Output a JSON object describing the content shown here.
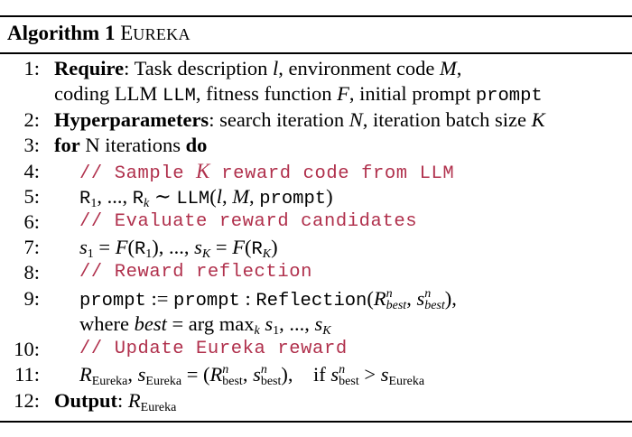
{
  "header": {
    "label": "Algorithm 1",
    "name_first": "E",
    "name_rest": "UREKA"
  },
  "lines": {
    "l1": {
      "num": "1:",
      "kw": "Require",
      "t1": ": Task description ",
      "v1": "l",
      "t2": ", environment code ",
      "v2": "M",
      "t3": ",",
      "t4": "coding LLM ",
      "m1": "LLM",
      "t5": ", fitness function ",
      "v3": "F",
      "t6": ", initial prompt ",
      "m2": "prompt"
    },
    "l2": {
      "num": "2:",
      "kw": "Hyperparameters",
      "t1": ": search iteration ",
      "v1": "N",
      "t2": ", iteration batch size ",
      "v2": "K"
    },
    "l3": {
      "num": "3:",
      "kw1": "for",
      "t1": " N iterations ",
      "kw2": "do"
    },
    "l4": {
      "num": "4:",
      "c1": "// Sample ",
      "ck": "K",
      "c2": " reward code from LLM"
    },
    "l5": {
      "num": "5:"
    },
    "l6": {
      "num": "6:",
      "c": "// Evaluate reward candidates"
    },
    "l7": {
      "num": "7:"
    },
    "l8": {
      "num": "8:",
      "c": "// Reward reflection"
    },
    "l9": {
      "num": "9:",
      "m1": "prompt",
      "t1": " := ",
      "m2": "prompt",
      "t2": " : ",
      "m3": "Reflection",
      "cont": "where "
    },
    "l10": {
      "num": "10:",
      "c": "// Update Eureka reward"
    },
    "l11": {
      "num": "11:",
      "if": "if "
    },
    "l12": {
      "num": "12:",
      "kw": "Output",
      "t1": ": "
    }
  }
}
